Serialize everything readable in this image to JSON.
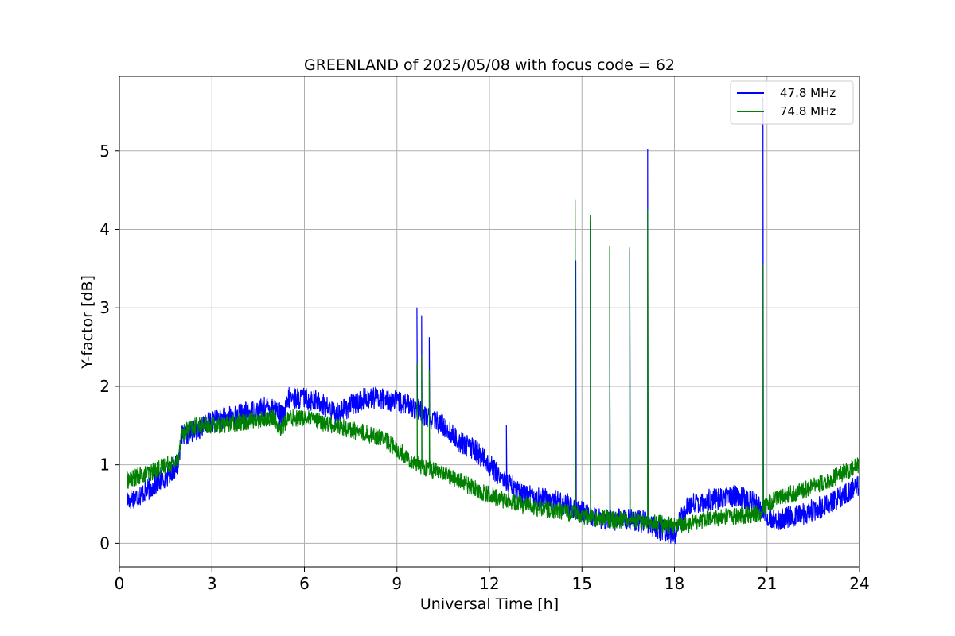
{
  "chart_data": {
    "type": "line",
    "title": "GREENLAND of 2025/05/08 with focus code = 62",
    "xlabel": "Universal Time [h]",
    "ylabel": "Y-factor [dB]",
    "xlim": [
      0,
      24
    ],
    "ylim": [
      -0.3,
      5.95
    ],
    "xticks": [
      0,
      3,
      6,
      9,
      12,
      15,
      18,
      21,
      24
    ],
    "xtick_labels": [
      "0",
      "3",
      "6",
      "9",
      "12",
      "15",
      "18",
      "21",
      "24"
    ],
    "yticks": [
      0,
      1,
      2,
      3,
      4,
      5
    ],
    "ytick_labels": [
      "0",
      "1",
      "2",
      "3",
      "4",
      "5"
    ],
    "grid": true,
    "legend_position": "top-right",
    "series": [
      {
        "name": "47.8 MHz",
        "color": "#0000ff",
        "noise_band": 0.14,
        "baseline": [
          [
            0.25,
            0.55
          ],
          [
            0.6,
            0.6
          ],
          [
            1.0,
            0.7
          ],
          [
            1.5,
            0.85
          ],
          [
            1.9,
            1.0
          ],
          [
            2.0,
            1.35
          ],
          [
            2.5,
            1.45
          ],
          [
            3.0,
            1.55
          ],
          [
            4.0,
            1.65
          ],
          [
            5.0,
            1.75
          ],
          [
            5.3,
            1.6
          ],
          [
            5.5,
            1.85
          ],
          [
            6.0,
            1.85
          ],
          [
            6.5,
            1.8
          ],
          [
            7.0,
            1.65
          ],
          [
            7.5,
            1.75
          ],
          [
            8.0,
            1.85
          ],
          [
            8.5,
            1.85
          ],
          [
            9.0,
            1.8
          ],
          [
            9.5,
            1.75
          ],
          [
            10.0,
            1.6
          ],
          [
            10.5,
            1.5
          ],
          [
            11.0,
            1.3
          ],
          [
            11.5,
            1.2
          ],
          [
            12.0,
            1.0
          ],
          [
            12.5,
            0.8
          ],
          [
            13.0,
            0.65
          ],
          [
            13.5,
            0.6
          ],
          [
            14.0,
            0.55
          ],
          [
            14.5,
            0.5
          ],
          [
            15.0,
            0.4
          ],
          [
            15.5,
            0.3
          ],
          [
            16.0,
            0.3
          ],
          [
            16.5,
            0.3
          ],
          [
            17.0,
            0.28
          ],
          [
            17.5,
            0.18
          ],
          [
            18.0,
            0.12
          ],
          [
            18.2,
            0.3
          ],
          [
            18.5,
            0.5
          ],
          [
            19.0,
            0.55
          ],
          [
            20.0,
            0.6
          ],
          [
            20.5,
            0.55
          ],
          [
            21.0,
            0.35
          ],
          [
            21.3,
            0.3
          ],
          [
            22.0,
            0.35
          ],
          [
            23.0,
            0.5
          ],
          [
            24.0,
            0.75
          ]
        ],
        "spikes": [
          [
            9.65,
            3.0
          ],
          [
            9.8,
            2.9
          ],
          [
            10.05,
            2.62
          ],
          [
            12.55,
            1.5
          ],
          [
            14.8,
            3.6
          ],
          [
            15.27,
            4.1
          ],
          [
            15.9,
            3.7
          ],
          [
            16.55,
            3.75
          ],
          [
            17.13,
            5.02
          ],
          [
            20.87,
            5.68
          ]
        ]
      },
      {
        "name": "74.8 MHz",
        "color": "#008000",
        "noise_band": 0.11,
        "baseline": [
          [
            0.25,
            0.8
          ],
          [
            0.6,
            0.85
          ],
          [
            1.0,
            0.9
          ],
          [
            1.5,
            1.0
          ],
          [
            1.9,
            1.05
          ],
          [
            2.0,
            1.4
          ],
          [
            2.5,
            1.5
          ],
          [
            3.0,
            1.5
          ],
          [
            4.0,
            1.55
          ],
          [
            5.0,
            1.6
          ],
          [
            5.2,
            1.45
          ],
          [
            5.5,
            1.6
          ],
          [
            6.0,
            1.6
          ],
          [
            6.5,
            1.55
          ],
          [
            7.0,
            1.5
          ],
          [
            8.0,
            1.4
          ],
          [
            8.5,
            1.35
          ],
          [
            9.0,
            1.2
          ],
          [
            9.5,
            1.05
          ],
          [
            10.0,
            0.95
          ],
          [
            10.5,
            0.9
          ],
          [
            11.0,
            0.8
          ],
          [
            11.5,
            0.7
          ],
          [
            12.0,
            0.62
          ],
          [
            12.5,
            0.55
          ],
          [
            13.0,
            0.5
          ],
          [
            13.5,
            0.45
          ],
          [
            14.0,
            0.42
          ],
          [
            14.5,
            0.4
          ],
          [
            15.0,
            0.35
          ],
          [
            15.5,
            0.32
          ],
          [
            16.0,
            0.3
          ],
          [
            16.5,
            0.3
          ],
          [
            17.0,
            0.28
          ],
          [
            17.5,
            0.25
          ],
          [
            18.0,
            0.22
          ],
          [
            18.5,
            0.25
          ],
          [
            19.0,
            0.3
          ],
          [
            20.0,
            0.35
          ],
          [
            20.8,
            0.38
          ],
          [
            21.0,
            0.5
          ],
          [
            21.5,
            0.6
          ],
          [
            22.0,
            0.65
          ],
          [
            23.0,
            0.8
          ],
          [
            24.0,
            1.0
          ]
        ],
        "spikes": [
          [
            9.65,
            2.3
          ],
          [
            9.8,
            2.4
          ],
          [
            10.05,
            2.2
          ],
          [
            14.78,
            4.38
          ],
          [
            15.27,
            4.18
          ],
          [
            15.9,
            3.78
          ],
          [
            16.55,
            3.77
          ],
          [
            17.13,
            4.25
          ],
          [
            20.87,
            3.55
          ]
        ]
      }
    ]
  }
}
